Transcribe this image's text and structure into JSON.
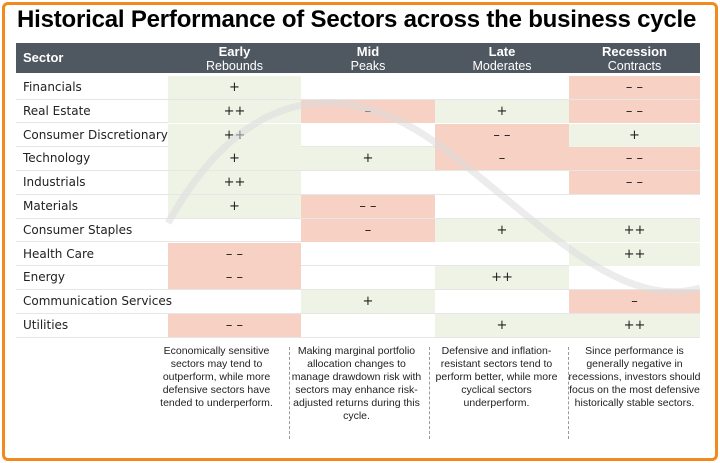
{
  "title": "Historical Performance of Sectors across the business cycle",
  "header": {
    "sector_label": "Sector",
    "phases": [
      {
        "name": "Early",
        "sub": "Rebounds"
      },
      {
        "name": "Mid",
        "sub": "Peaks"
      },
      {
        "name": "Late",
        "sub": "Moderates"
      },
      {
        "name": "Recession",
        "sub": "Contracts"
      }
    ]
  },
  "rows": [
    {
      "sector": "Financials",
      "values": [
        "+",
        "",
        "",
        "– –"
      ]
    },
    {
      "sector": "Real Estate",
      "values": [
        "++",
        "–",
        "+",
        "– –"
      ]
    },
    {
      "sector": "Consumer Discretionary",
      "values": [
        "++",
        "",
        "– –",
        "+"
      ]
    },
    {
      "sector": "Technology",
      "values": [
        "+",
        "+",
        "–",
        "– –"
      ]
    },
    {
      "sector": "Industrials",
      "values": [
        "++",
        "",
        "",
        "– –"
      ]
    },
    {
      "sector": "Materials",
      "values": [
        "+",
        "– –",
        "",
        ""
      ]
    },
    {
      "sector": "Consumer Staples",
      "values": [
        "",
        "–",
        "+",
        "++"
      ]
    },
    {
      "sector": "Health Care",
      "values": [
        "– –",
        "",
        "",
        "++"
      ]
    },
    {
      "sector": "Energy",
      "values": [
        "– –",
        "",
        "++",
        ""
      ]
    },
    {
      "sector": "Communication Services",
      "values": [
        "",
        "+",
        "",
        "–"
      ]
    },
    {
      "sector": "Utilities",
      "values": [
        "– –",
        "",
        "+",
        "++"
      ]
    }
  ],
  "notes": [
    "Economically sensitive sectors may tend to outperform, while more defensive sectors have tended to underperform.",
    "Making marginal portfolio allocation changes to manage drawdown risk with sectors may enhance risk-adjusted returns during this cycle.",
    "Defensive and inflation-resistant sectors tend to perform better, while more cyclical sectors underperform.",
    "Since performance is generally negative in recessions, investors should focus on the most defensive historically stable sectors."
  ],
  "colors": {
    "frame": "#f08a1e",
    "header": "#4f5761",
    "positive": "#eef3e6",
    "negative": "#f6d1c4"
  }
}
